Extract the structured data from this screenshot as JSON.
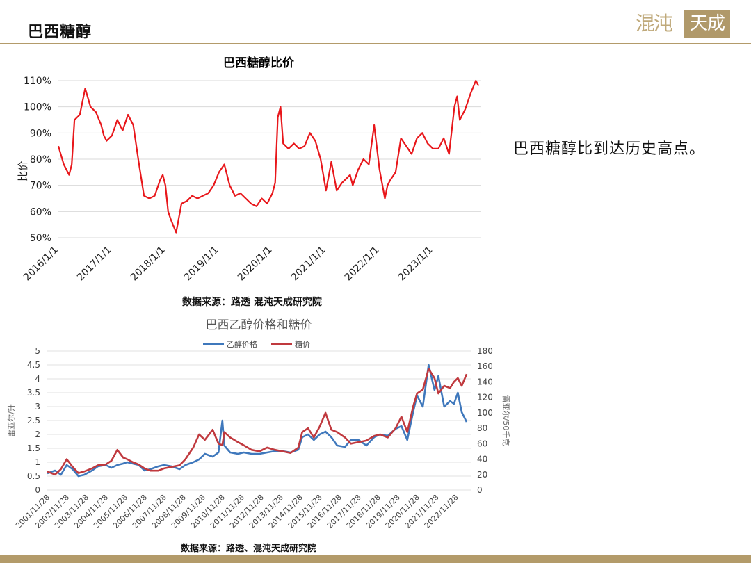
{
  "header": {
    "title": "巴西糖醇",
    "logo_left": "混沌",
    "logo_right": "天成"
  },
  "side_note": "巴西糖醇比到达历史高点。",
  "colors": {
    "chart1_line": "#e8171b",
    "ethanol": "#3f78bc",
    "sugar": "#c0393e",
    "accent": "#b39b6a"
  },
  "chart_data": [
    {
      "type": "line",
      "title": "巴西糖醇比价",
      "xlabel": "",
      "ylabel": "比价",
      "ylim": [
        0.5,
        1.1
      ],
      "yticks": [
        "50%",
        "60%",
        "70%",
        "80%",
        "90%",
        "100%",
        "110%"
      ],
      "xticks": [
        "2016/1/1",
        "2017/1/1",
        "2018/1/1",
        "2019/1/1",
        "2020/1/1",
        "2021/1/1",
        "2022/1/1",
        "2023/1/1"
      ],
      "grid": true,
      "series": [
        {
          "x": [
            2016.0,
            2016.1,
            2016.2,
            2016.25,
            2016.3,
            2016.4,
            2016.5,
            2016.6,
            2016.7,
            2016.8,
            2016.85,
            2016.9,
            2017.0,
            2017.1,
            2017.2,
            2017.3,
            2017.4,
            2017.5,
            2017.6,
            2017.7,
            2017.8,
            2017.9,
            2017.95,
            2018.0,
            2018.05,
            2018.1,
            2018.2,
            2018.3,
            2018.4,
            2018.5,
            2018.6,
            2018.7,
            2018.8,
            2018.9,
            2019.0,
            2019.1,
            2019.2,
            2019.3,
            2019.4,
            2019.5,
            2019.6,
            2019.7,
            2019.8,
            2019.9,
            2020.0,
            2020.05,
            2020.1,
            2020.15,
            2020.2,
            2020.3,
            2020.4,
            2020.5,
            2020.6,
            2020.7,
            2020.8,
            2020.9,
            2021.0,
            2021.1,
            2021.2,
            2021.3,
            2021.4,
            2021.45,
            2021.5,
            2021.6,
            2021.7,
            2021.8,
            2021.9,
            2022.0,
            2022.1,
            2022.15,
            2022.2,
            2022.3,
            2022.4,
            2022.5,
            2022.6,
            2022.7,
            2022.8,
            2022.9,
            2023.0,
            2023.1,
            2023.2,
            2023.3,
            2023.4,
            2023.45,
            2023.5,
            2023.6,
            2023.65,
            2023.7,
            2023.8,
            2023.85
          ],
          "y": [
            0.85,
            0.78,
            0.74,
            0.78,
            0.95,
            0.97,
            1.07,
            1.0,
            0.98,
            0.93,
            0.89,
            0.87,
            0.89,
            0.95,
            0.91,
            0.97,
            0.93,
            0.79,
            0.66,
            0.65,
            0.66,
            0.72,
            0.74,
            0.7,
            0.6,
            0.57,
            0.52,
            0.63,
            0.64,
            0.66,
            0.65,
            0.66,
            0.67,
            0.7,
            0.75,
            0.78,
            0.7,
            0.66,
            0.67,
            0.65,
            0.63,
            0.62,
            0.65,
            0.63,
            0.67,
            0.71,
            0.96,
            1.0,
            0.86,
            0.84,
            0.86,
            0.84,
            0.85,
            0.9,
            0.87,
            0.8,
            0.68,
            0.79,
            0.68,
            0.71,
            0.73,
            0.74,
            0.7,
            0.76,
            0.8,
            0.78,
            0.93,
            0.76,
            0.65,
            0.7,
            0.72,
            0.75,
            0.88,
            0.85,
            0.82,
            0.88,
            0.9,
            0.86,
            0.84,
            0.84,
            0.88,
            0.82,
            1.0,
            1.04,
            0.95,
            0.99,
            1.02,
            1.05,
            1.1,
            1.08
          ]
        }
      ]
    },
    {
      "type": "line",
      "title": "巴西乙醇价格和糖价",
      "ylabel": "雷亚尔/升",
      "y2label": "雷亚尔/50千克",
      "ylim": [
        0,
        5
      ],
      "y2lim": [
        0,
        180
      ],
      "yticks": [
        "0",
        "0.5",
        "1",
        "1.5",
        "2",
        "2.5",
        "3",
        "3.5",
        "4",
        "4.5",
        "5"
      ],
      "y2ticks": [
        "0",
        "20",
        "40",
        "60",
        "80",
        "100",
        "120",
        "140",
        "160",
        "180"
      ],
      "xticks": [
        "2001/11/28",
        "2002/11/28",
        "2003/11/28",
        "2004/11/28",
        "2005/11/28",
        "2006/11/28",
        "2007/11/28",
        "2008/11/28",
        "2009/11/28",
        "2010/11/28",
        "2011/11/28",
        "2012/11/28",
        "2013/11/28",
        "2014/11/28",
        "2015/11/28",
        "2016/11/28",
        "2017/11/28",
        "2018/11/28",
        "2019/11/28",
        "2020/11/28",
        "2021/11/28",
        "2022/11/28"
      ],
      "legend_position": "top",
      "grid": true,
      "series": [
        {
          "name": "乙醇价格",
          "axis": "left",
          "x": [
            2001.9,
            2002.3,
            2002.6,
            2002.9,
            2003.2,
            2003.5,
            2003.8,
            2004.2,
            2004.5,
            2004.9,
            2005.2,
            2005.5,
            2005.8,
            2006.0,
            2006.3,
            2006.6,
            2006.9,
            2007.2,
            2007.6,
            2007.9,
            2008.3,
            2008.7,
            2009.0,
            2009.4,
            2009.7,
            2010.0,
            2010.4,
            2010.7,
            2010.9,
            2011.0,
            2011.3,
            2011.7,
            2012.0,
            2012.4,
            2012.8,
            2013.2,
            2013.6,
            2014.0,
            2014.4,
            2014.8,
            2015.0,
            2015.3,
            2015.6,
            2015.9,
            2016.2,
            2016.5,
            2016.8,
            2017.2,
            2017.5,
            2017.9,
            2018.3,
            2018.7,
            2019.0,
            2019.4,
            2019.8,
            2020.1,
            2020.4,
            2020.7,
            2020.9,
            2021.2,
            2021.5,
            2021.8,
            2022.0,
            2022.3,
            2022.6,
            2022.8,
            2023.0,
            2023.2,
            2023.45
          ],
          "y": [
            0.6,
            0.7,
            0.55,
            0.9,
            0.75,
            0.5,
            0.55,
            0.7,
            0.85,
            0.9,
            0.8,
            0.9,
            0.95,
            1.0,
            0.95,
            0.9,
            0.7,
            0.75,
            0.85,
            0.9,
            0.85,
            0.75,
            0.9,
            1.0,
            1.1,
            1.3,
            1.2,
            1.35,
            2.5,
            1.6,
            1.35,
            1.3,
            1.35,
            1.3,
            1.3,
            1.35,
            1.4,
            1.4,
            1.35,
            1.45,
            1.9,
            2.0,
            1.8,
            2.0,
            2.1,
            1.9,
            1.6,
            1.55,
            1.8,
            1.8,
            1.6,
            1.9,
            2.0,
            1.95,
            2.2,
            2.3,
            1.8,
            2.8,
            3.4,
            3.0,
            4.5,
            3.6,
            4.1,
            3.0,
            3.2,
            3.1,
            3.5,
            2.8,
            2.45
          ]
        },
        {
          "name": "糖价",
          "axis": "right",
          "x": [
            2001.9,
            2002.3,
            2002.6,
            2002.9,
            2003.2,
            2003.5,
            2003.8,
            2004.2,
            2004.5,
            2004.9,
            2005.2,
            2005.5,
            2005.8,
            2006.0,
            2006.3,
            2006.6,
            2006.9,
            2007.2,
            2007.6,
            2007.9,
            2008.3,
            2008.7,
            2009.0,
            2009.4,
            2009.7,
            2010.0,
            2010.4,
            2010.7,
            2010.9,
            2011.0,
            2011.3,
            2011.7,
            2012.0,
            2012.4,
            2012.8,
            2013.2,
            2013.6,
            2014.0,
            2014.4,
            2014.8,
            2015.0,
            2015.3,
            2015.6,
            2015.9,
            2016.2,
            2016.5,
            2016.8,
            2017.2,
            2017.5,
            2017.9,
            2018.3,
            2018.7,
            2019.0,
            2019.4,
            2019.8,
            2020.1,
            2020.4,
            2020.7,
            2020.9,
            2021.2,
            2021.5,
            2021.8,
            2022.0,
            2022.3,
            2022.6,
            2022.8,
            2023.0,
            2023.2,
            2023.45
          ],
          "y": [
            24,
            20,
            27,
            40,
            30,
            22,
            24,
            28,
            32,
            33,
            38,
            52,
            42,
            40,
            36,
            33,
            28,
            25,
            25,
            28,
            30,
            32,
            40,
            55,
            72,
            65,
            78,
            60,
            58,
            75,
            68,
            62,
            58,
            52,
            50,
            55,
            52,
            50,
            48,
            55,
            75,
            80,
            68,
            82,
            100,
            78,
            75,
            68,
            60,
            62,
            64,
            70,
            72,
            68,
            80,
            95,
            75,
            108,
            125,
            130,
            157,
            145,
            125,
            135,
            132,
            140,
            145,
            135,
            150
          ]
        }
      ]
    }
  ],
  "sources": {
    "chart1": "数据来源：路透 混沌天成研究院",
    "chart2": "数据来源：路透、混沌天成研究院"
  }
}
